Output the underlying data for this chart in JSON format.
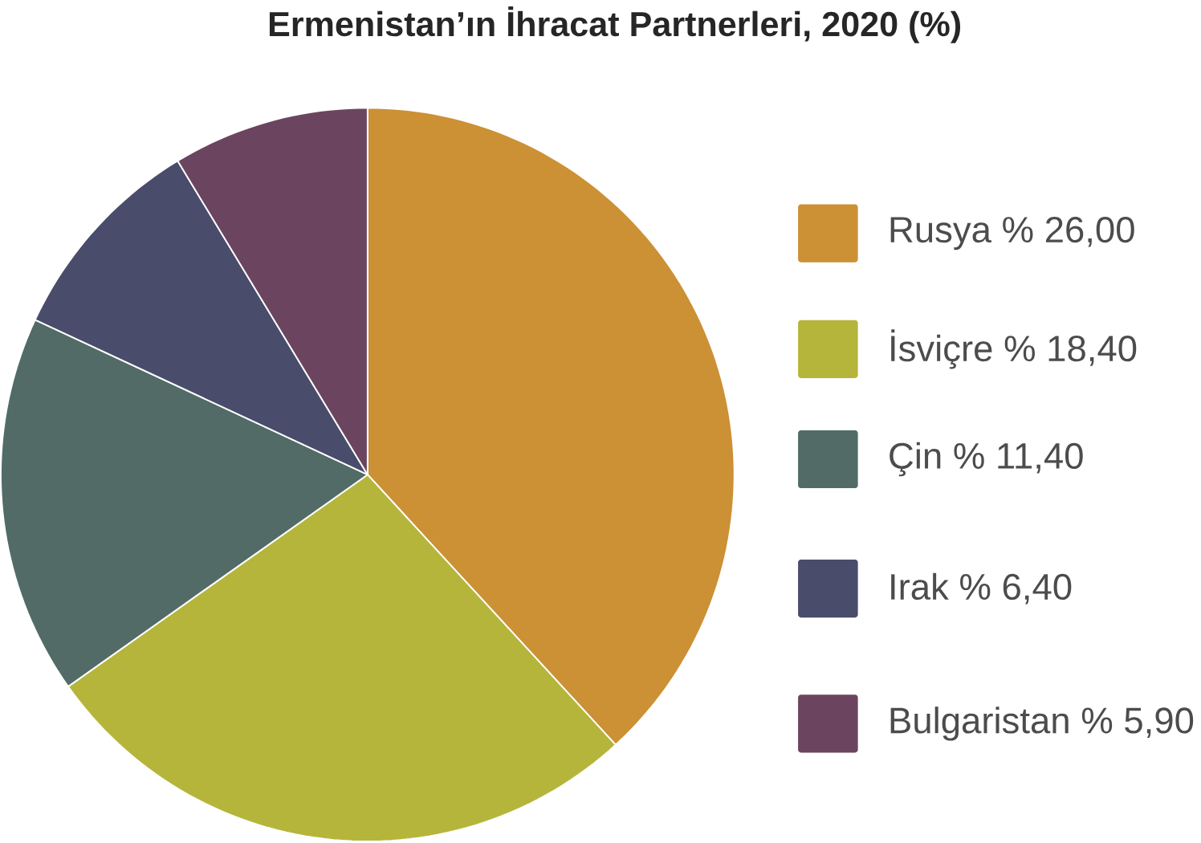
{
  "chart_data": {
    "type": "pie",
    "title": "Ermenistan’ın İhracat Partnerleri, 2020 (%)",
    "categories": [
      "Rusya",
      "İsviçre",
      "Çin",
      "Irak",
      "Bulgaristan"
    ],
    "values": [
      26.0,
      18.4,
      11.4,
      6.4,
      5.9
    ],
    "value_labels": [
      "% 26,00",
      "% 18,40",
      "% 11,40",
      "% 6,40",
      "% 5,90"
    ],
    "colors": [
      "#cc9035",
      "#b5b53c",
      "#526b66",
      "#4a4c6c",
      "#6b4560"
    ],
    "legend": "right"
  }
}
